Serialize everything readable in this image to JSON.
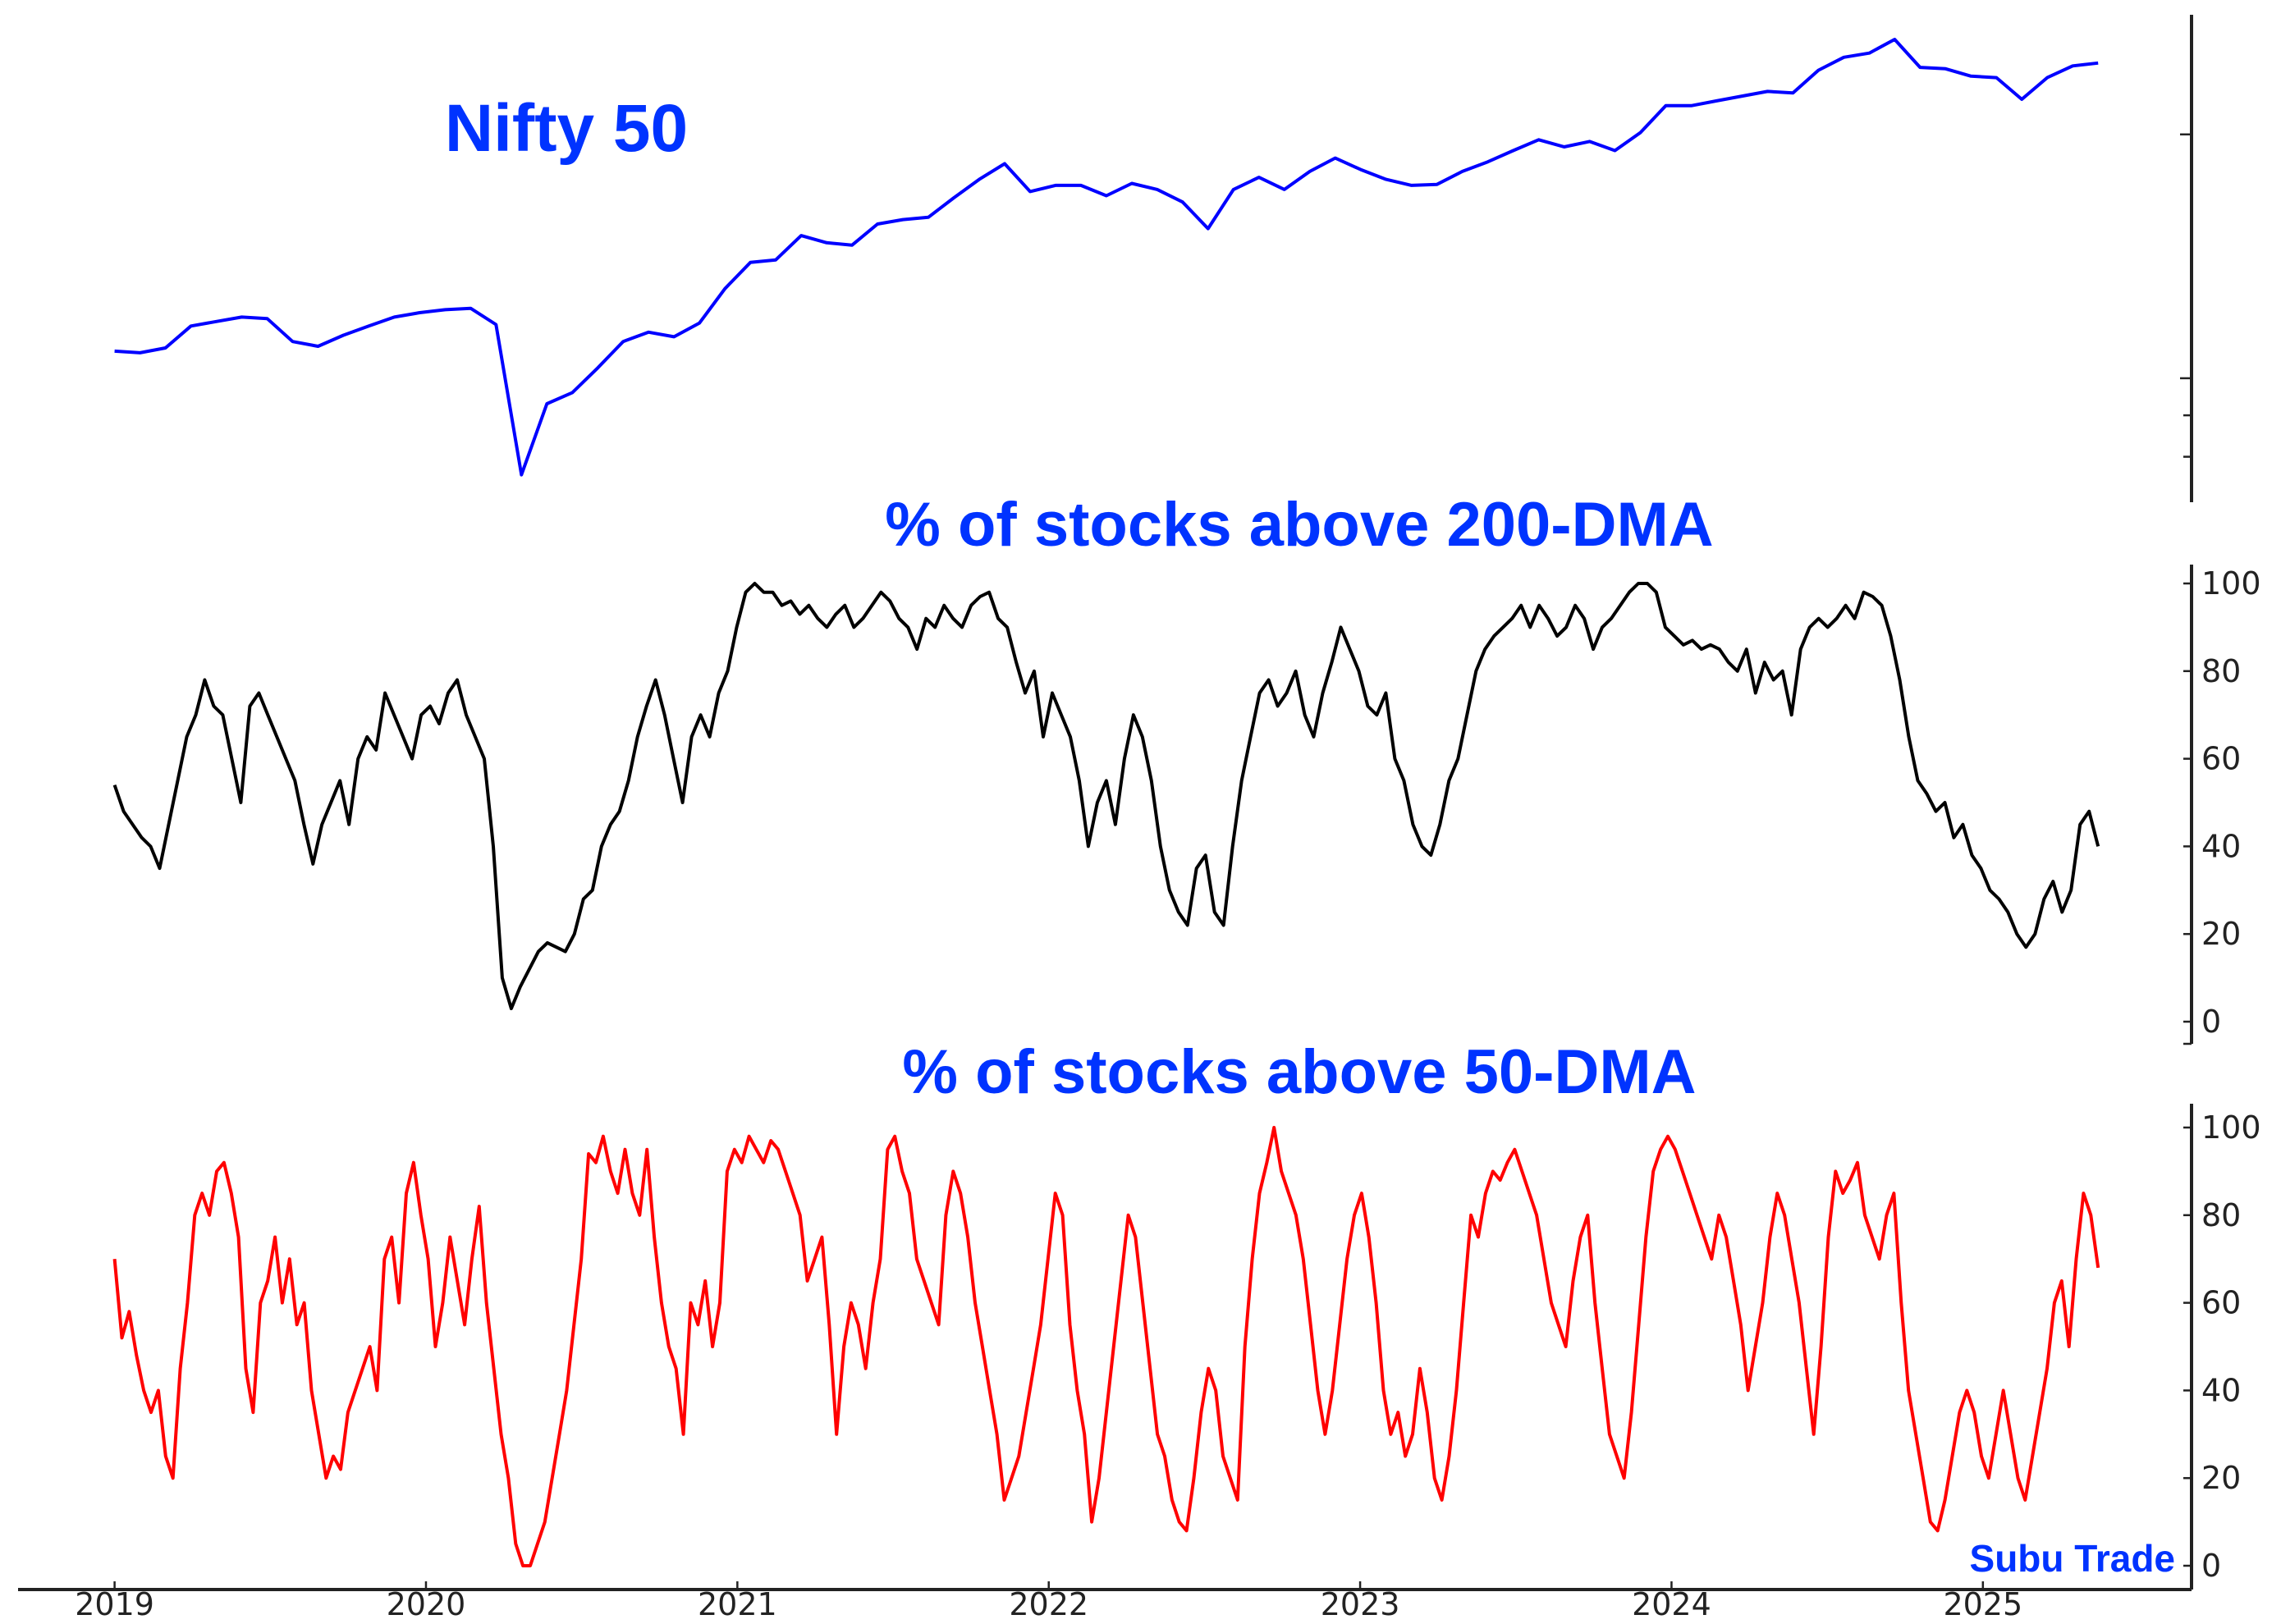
{
  "chart_data": [
    {
      "type": "line",
      "title": "Nifty 50",
      "yscale": "log",
      "ylim": [
        7030,
        28100
      ],
      "yticks_unlabeled": [
        8000,
        9000,
        10000,
        20000
      ],
      "color": "#0000ff",
      "x_start": 2019.0,
      "x_end": 2025.37,
      "values": [
        10800,
        10750,
        10900,
        11600,
        11750,
        11900,
        11850,
        11100,
        10950,
        11300,
        11600,
        11900,
        12050,
        12150,
        12200,
        11650,
        7600,
        9300,
        9600,
        10300,
        11100,
        11400,
        11250,
        11700,
        12900,
        13900,
        14000,
        15000,
        14700,
        14600,
        15500,
        15700,
        15800,
        16700,
        17600,
        18400,
        17000,
        17300,
        17300,
        16800,
        17400,
        17100,
        16500,
        15300,
        17100,
        17700,
        17100,
        18000,
        18700,
        18100,
        17600,
        17300,
        17350,
        18000,
        18500,
        19100,
        19700,
        19300,
        19600,
        19100,
        20100,
        21700,
        21700,
        22000,
        22300,
        22600,
        22500,
        24000,
        24900,
        25200,
        26200,
        24200,
        24100,
        23600,
        23500,
        22100,
        23500,
        24300,
        24500
      ]
    },
    {
      "type": "line",
      "title": "% of stocks above 200-DMA",
      "ylim": [
        0,
        105
      ],
      "yticks": [
        0,
        20,
        40,
        60,
        80,
        100
      ],
      "color": "#000000",
      "x_start": 2019.0,
      "x_end": 2025.37,
      "values": [
        54,
        48,
        45,
        42,
        40,
        35,
        45,
        55,
        65,
        70,
        78,
        72,
        70,
        60,
        50,
        72,
        75,
        70,
        65,
        60,
        55,
        45,
        36,
        45,
        50,
        55,
        45,
        60,
        65,
        62,
        75,
        70,
        65,
        60,
        70,
        72,
        68,
        75,
        78,
        70,
        65,
        60,
        40,
        10,
        3,
        8,
        12,
        16,
        18,
        17,
        16,
        20,
        28,
        30,
        40,
        45,
        48,
        55,
        65,
        72,
        78,
        70,
        60,
        50,
        65,
        70,
        65,
        75,
        80,
        90,
        98,
        100,
        98,
        98,
        95,
        96,
        93,
        95,
        92,
        90,
        93,
        95,
        90,
        92,
        95,
        98,
        96,
        92,
        90,
        85,
        92,
        90,
        95,
        92,
        90,
        95,
        97,
        98,
        92,
        90,
        82,
        75,
        80,
        65,
        75,
        70,
        65,
        55,
        40,
        50,
        55,
        45,
        60,
        70,
        65,
        55,
        40,
        30,
        25,
        22,
        35,
        38,
        25,
        22,
        40,
        55,
        65,
        75,
        78,
        72,
        75,
        80,
        70,
        65,
        75,
        82,
        90,
        85,
        80,
        72,
        70,
        75,
        60,
        55,
        45,
        40,
        38,
        45,
        55,
        60,
        70,
        80,
        85,
        88,
        90,
        92,
        95,
        90,
        95,
        92,
        88,
        90,
        95,
        92,
        85,
        90,
        92,
        95,
        98,
        100,
        100,
        98,
        90,
        88,
        86,
        87,
        85,
        86,
        85,
        82,
        80,
        85,
        75,
        82,
        78,
        80,
        70,
        85,
        90,
        92,
        90,
        92,
        95,
        92,
        98,
        97,
        95,
        88,
        78,
        65,
        55,
        52,
        48,
        50,
        42,
        45,
        38,
        35,
        30,
        28,
        25,
        20,
        17,
        20,
        28,
        32,
        25,
        30,
        45,
        48,
        40
      ]
    },
    {
      "type": "line",
      "title": "% of stocks above 50-DMA",
      "ylim": [
        0,
        105
      ],
      "yticks": [
        0,
        20,
        40,
        60,
        80,
        100
      ],
      "color": "#ff0000",
      "x_start": 2019.0,
      "x_end": 2025.37,
      "values": [
        70,
        52,
        58,
        48,
        40,
        35,
        40,
        25,
        20,
        45,
        60,
        80,
        85,
        80,
        90,
        92,
        85,
        75,
        45,
        35,
        60,
        65,
        75,
        60,
        70,
        55,
        60,
        40,
        30,
        20,
        25,
        22,
        35,
        40,
        45,
        50,
        40,
        70,
        75,
        60,
        85,
        92,
        80,
        70,
        50,
        60,
        75,
        65,
        55,
        70,
        82,
        60,
        45,
        30,
        20,
        5,
        0,
        0,
        5,
        10,
        20,
        30,
        40,
        55,
        70,
        94,
        92,
        98,
        90,
        85,
        95,
        85,
        80,
        95,
        75,
        60,
        50,
        45,
        30,
        60,
        55,
        65,
        50,
        60,
        90,
        95,
        92,
        98,
        95,
        92,
        97,
        95,
        90,
        85,
        80,
        65,
        70,
        75,
        55,
        30,
        50,
        60,
        55,
        45,
        60,
        70,
        95,
        98,
        90,
        85,
        70,
        65,
        60,
        55,
        80,
        90,
        85,
        75,
        60,
        50,
        40,
        30,
        15,
        20,
        25,
        35,
        45,
        55,
        70,
        85,
        80,
        55,
        40,
        30,
        10,
        20,
        35,
        50,
        65,
        80,
        75,
        60,
        45,
        30,
        25,
        15,
        10,
        8,
        20,
        35,
        45,
        40,
        25,
        20,
        15,
        50,
        70,
        85,
        92,
        100,
        90,
        85,
        80,
        70,
        55,
        40,
        30,
        40,
        55,
        70,
        80,
        85,
        75,
        60,
        40,
        30,
        35,
        25,
        30,
        45,
        35,
        20,
        15,
        25,
        40,
        60,
        80,
        75,
        85,
        90,
        88,
        92,
        95,
        90,
        85,
        80,
        70,
        60,
        55,
        50,
        65,
        75,
        80,
        60,
        45,
        30,
        25,
        20,
        35,
        55,
        75,
        90,
        95,
        98,
        95,
        90,
        85,
        80,
        75,
        70,
        80,
        75,
        65,
        55,
        40,
        50,
        60,
        75,
        85,
        80,
        70,
        60,
        45,
        30,
        50,
        75,
        90,
        85,
        88,
        92,
        80,
        75,
        70,
        80,
        85,
        60,
        40,
        30,
        20,
        10,
        8,
        15,
        25,
        35,
        40,
        35,
        25,
        20,
        30,
        40,
        30,
        20,
        15,
        25,
        35,
        45,
        60,
        65,
        50,
        70,
        85,
        80,
        68
      ]
    }
  ],
  "x_axis": {
    "xlim": [
      2018.69,
      2025.67
    ],
    "ticks": [
      2019,
      2020,
      2021,
      2022,
      2023,
      2024,
      2025
    ],
    "tick_labels": [
      "2019",
      "2020",
      "2021",
      "2022",
      "2023",
      "2024",
      "2025"
    ]
  },
  "watermark": "Subu Trade",
  "colors": {
    "title": "#0033ff",
    "nifty": "#0000ff",
    "dma200": "#000000",
    "dma50": "#ff0000"
  }
}
